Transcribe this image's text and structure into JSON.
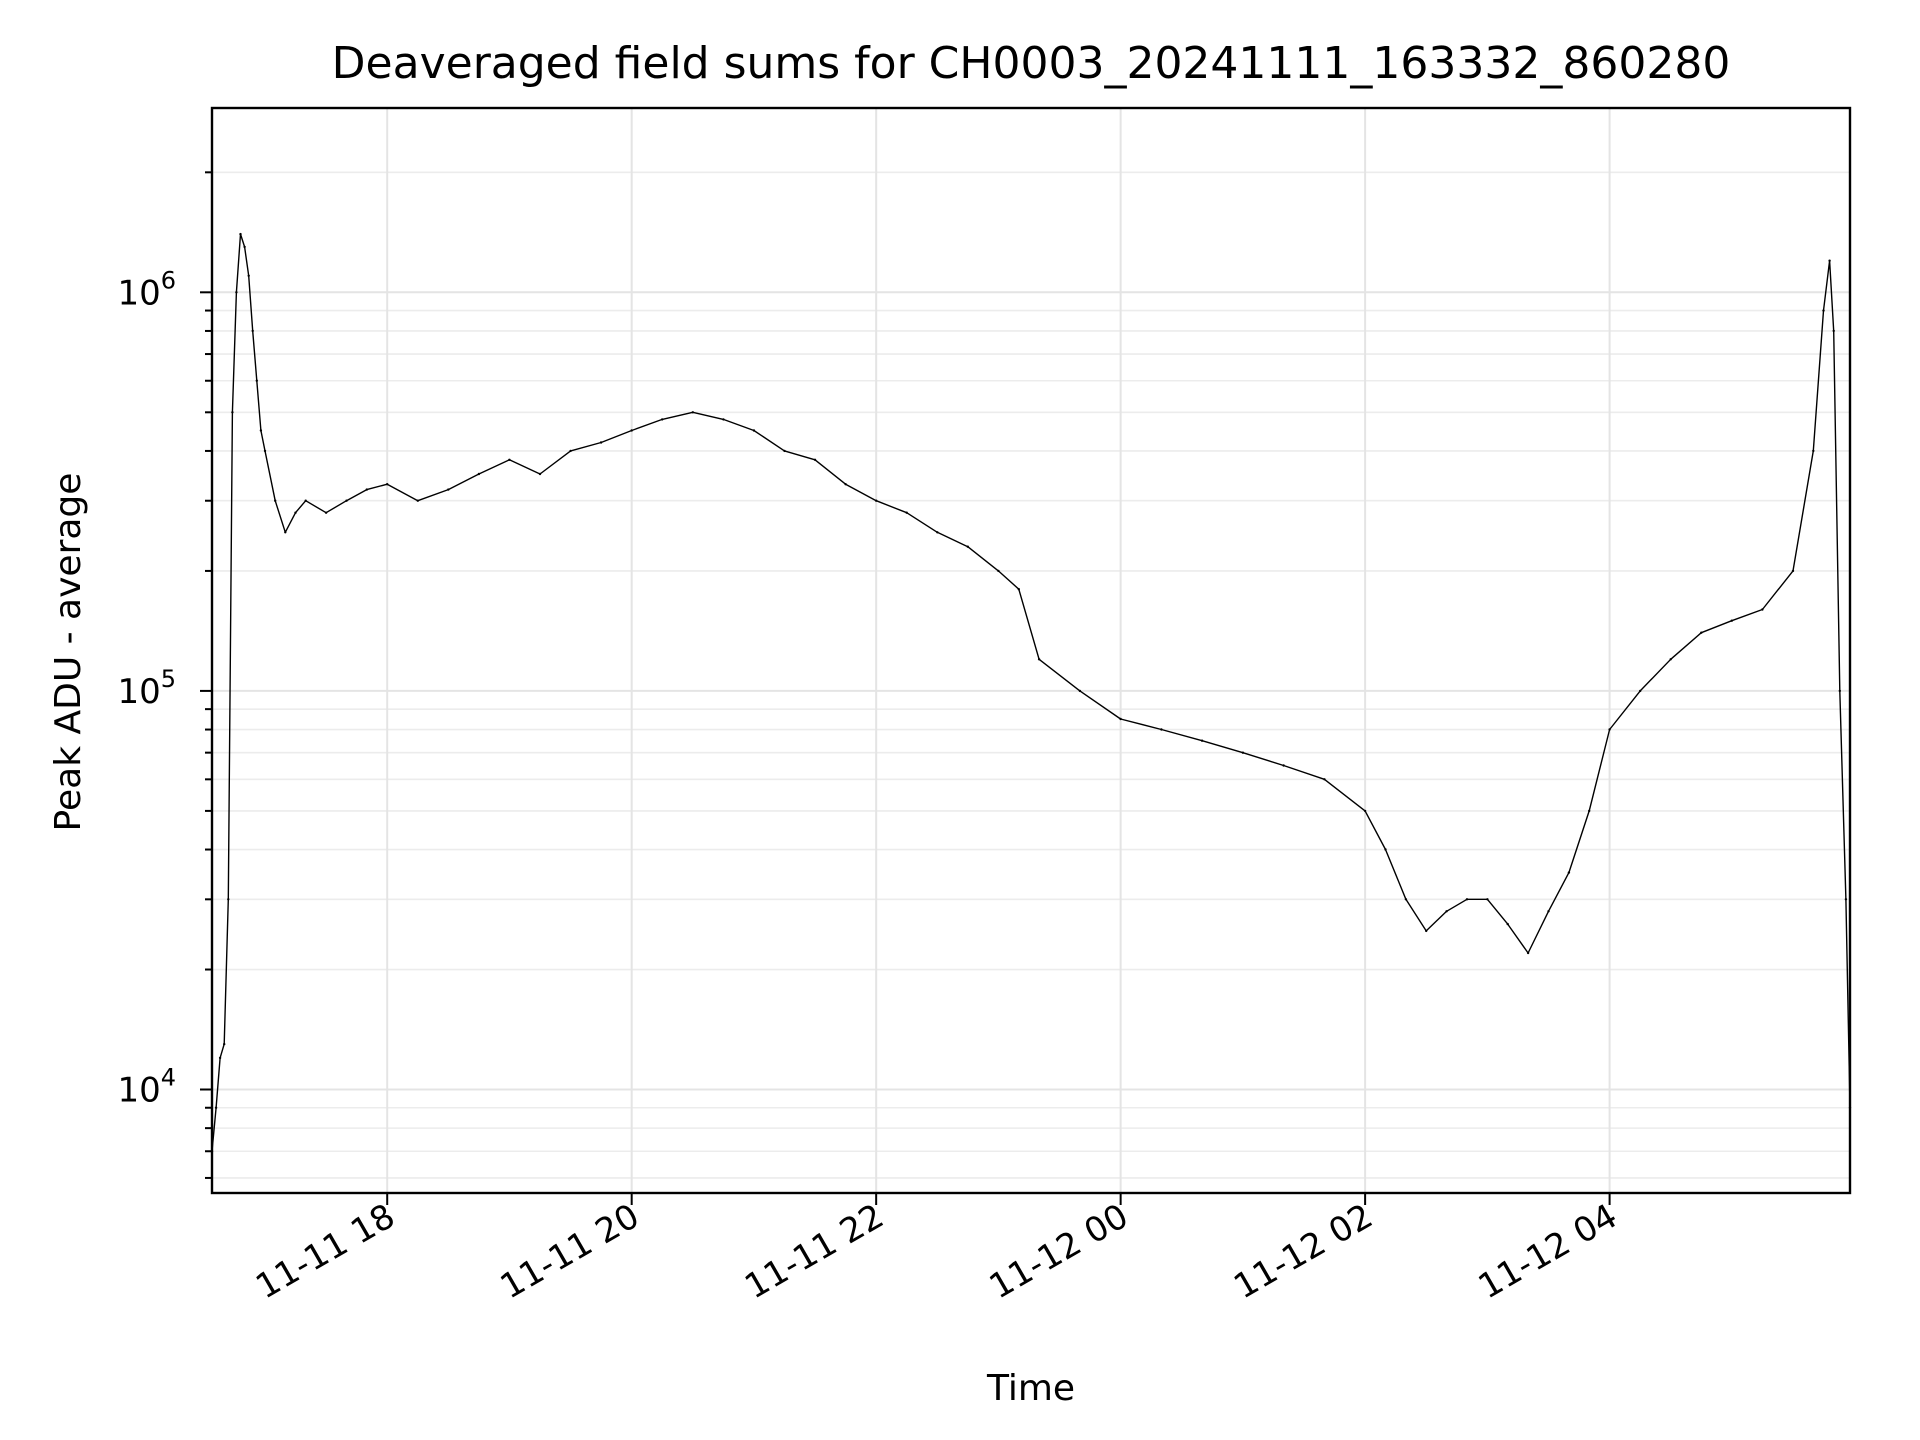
{
  "chart_data": {
    "type": "line",
    "title": "Deaveraged field sums for CH0003_20241111_163332_860280",
    "xlabel": "Time",
    "ylabel": "Peak ADU - average",
    "xlim": [
      "2024-11-11 16:34",
      "2024-11-12 05:58"
    ],
    "ylim": [
      5500,
      2900000
    ],
    "yscale": "log",
    "grid": true,
    "x_ticks": [
      {
        "value": "2024-11-11 18:00",
        "label": "11-11 18"
      },
      {
        "value": "2024-11-11 20:00",
        "label": "11-11 20"
      },
      {
        "value": "2024-11-11 22:00",
        "label": "11-11 22"
      },
      {
        "value": "2024-11-12 00:00",
        "label": "11-12 00"
      },
      {
        "value": "2024-11-12 02:00",
        "label": "11-12 02"
      },
      {
        "value": "2024-11-12 04:00",
        "label": "11-12 04"
      }
    ],
    "y_ticks": [
      {
        "value": 10000,
        "base": "10",
        "exp": "4"
      },
      {
        "value": 100000,
        "base": "10",
        "exp": "5"
      },
      {
        "value": 1000000,
        "base": "10",
        "exp": "6"
      }
    ],
    "series": [
      {
        "color": "#000000",
        "x": [
          "2024-11-11 16:34",
          "2024-11-11 16:36",
          "2024-11-11 16:38",
          "2024-11-11 16:40",
          "2024-11-11 16:42",
          "2024-11-11 16:44",
          "2024-11-11 16:46",
          "2024-11-11 16:48",
          "2024-11-11 16:50",
          "2024-11-11 16:52",
          "2024-11-11 16:54",
          "2024-11-11 16:56",
          "2024-11-11 16:58",
          "2024-11-11 17:00",
          "2024-11-11 17:05",
          "2024-11-11 17:10",
          "2024-11-11 17:15",
          "2024-11-11 17:20",
          "2024-11-11 17:30",
          "2024-11-11 17:40",
          "2024-11-11 17:50",
          "2024-11-11 18:00",
          "2024-11-11 18:15",
          "2024-11-11 18:30",
          "2024-11-11 18:45",
          "2024-11-11 19:00",
          "2024-11-11 19:15",
          "2024-11-11 19:30",
          "2024-11-11 19:45",
          "2024-11-11 20:00",
          "2024-11-11 20:15",
          "2024-11-11 20:30",
          "2024-11-11 20:45",
          "2024-11-11 21:00",
          "2024-11-11 21:15",
          "2024-11-11 21:30",
          "2024-11-11 21:45",
          "2024-11-11 22:00",
          "2024-11-11 22:15",
          "2024-11-11 22:30",
          "2024-11-11 22:45",
          "2024-11-11 23:00",
          "2024-11-11 23:10",
          "2024-11-11 23:20",
          "2024-11-11 23:40",
          "2024-11-12 00:00",
          "2024-11-12 00:20",
          "2024-11-12 00:40",
          "2024-11-12 01:00",
          "2024-11-12 01:20",
          "2024-11-12 01:40",
          "2024-11-12 02:00",
          "2024-11-12 02:10",
          "2024-11-12 02:20",
          "2024-11-12 02:30",
          "2024-11-12 02:40",
          "2024-11-12 02:50",
          "2024-11-12 03:00",
          "2024-11-12 03:10",
          "2024-11-12 03:20",
          "2024-11-12 03:30",
          "2024-11-12 03:40",
          "2024-11-12 03:50",
          "2024-11-12 04:00",
          "2024-11-12 04:15",
          "2024-11-12 04:30",
          "2024-11-12 04:45",
          "2024-11-12 05:00",
          "2024-11-12 05:15",
          "2024-11-12 05:30",
          "2024-11-12 05:40",
          "2024-11-12 05:45",
          "2024-11-12 05:48",
          "2024-11-12 05:50",
          "2024-11-12 05:53",
          "2024-11-12 05:56",
          "2024-11-12 05:58"
        ],
        "y": [
          7000,
          9000,
          12000,
          13000,
          30000,
          500000,
          1000000,
          1400000,
          1300000,
          1100000,
          800000,
          600000,
          450000,
          400000,
          300000,
          250000,
          280000,
          300000,
          280000,
          300000,
          320000,
          330000,
          300000,
          320000,
          350000,
          380000,
          350000,
          400000,
          420000,
          450000,
          480000,
          500000,
          480000,
          450000,
          400000,
          380000,
          330000,
          300000,
          280000,
          250000,
          230000,
          200000,
          180000,
          120000,
          100000,
          85000,
          80000,
          75000,
          70000,
          65000,
          60000,
          50000,
          40000,
          30000,
          25000,
          28000,
          30000,
          30000,
          26000,
          22000,
          28000,
          35000,
          50000,
          80000,
          100000,
          120000,
          140000,
          150000,
          160000,
          200000,
          400000,
          900000,
          1200000,
          800000,
          100000,
          30000,
          9000
        ]
      }
    ]
  }
}
